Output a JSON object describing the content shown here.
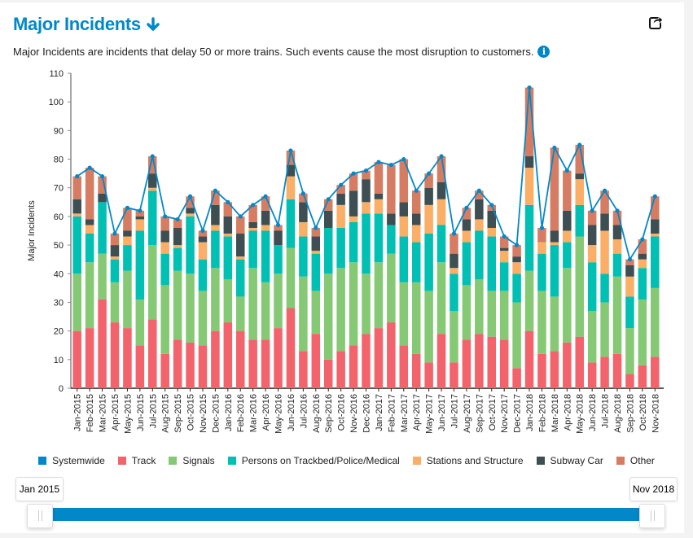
{
  "header": {
    "title": "Major Incidents",
    "description": "Major Incidents are incidents that delay 50 or more trains. Such events cause the most disruption to customers.",
    "title_icon": "arrow-down-icon",
    "share_icon": "share-icon",
    "info_icon": "info-icon",
    "info_glyph": "i"
  },
  "range": {
    "start_label": "Jan 2015",
    "end_label": "Nov 2018",
    "start_fraction": 0,
    "end_fraction": 1
  },
  "chart_data": {
    "type": "bar",
    "stacked": true,
    "title": "Major Incidents",
    "xlabel": "",
    "ylabel": "Major Incidents",
    "ylim": [
      0,
      110
    ],
    "yticks": [
      0,
      10,
      20,
      30,
      40,
      50,
      60,
      70,
      80,
      90,
      100,
      110
    ],
    "grid": false,
    "legend_position": "bottom",
    "categories": [
      "Jan-2015",
      "Feb-2015",
      "Mar-2015",
      "Apr-2015",
      "May-2015",
      "Jun-2015",
      "Jul-2015",
      "Aug-2015",
      "Sep-2015",
      "Oct-2015",
      "Nov-2015",
      "Dec-2015",
      "Jan-2016",
      "Feb-2016",
      "Mar-2016",
      "Apr-2016",
      "May-2016",
      "Jun-2016",
      "Jul-2016",
      "Aug-2016",
      "Sep-2016",
      "Oct-2016",
      "Nov-2016",
      "Dec-2016",
      "Jan-2017",
      "Feb-2017",
      "Mar-2017",
      "Apr-2017",
      "May-2017",
      "Jun-2017",
      "Jul-2017",
      "Aug-2017",
      "Sep-2017",
      "Oct-2017",
      "Nov-2017",
      "Dec-2017",
      "Jan-2018",
      "Feb-2018",
      "Mar-2018",
      "Apr-2018",
      "May-2018",
      "Jun-2018",
      "Jul-2018",
      "Aug-2018",
      "Sep-2018",
      "Oct-2018",
      "Nov-2018"
    ],
    "line_series": {
      "name": "Systemwide",
      "color": "#0288c9",
      "type": "line",
      "values": [
        74,
        77,
        74,
        54,
        63,
        62,
        81,
        60,
        59,
        67,
        55,
        69,
        65,
        60,
        64,
        67,
        57,
        83,
        68,
        56,
        66,
        71,
        75,
        76,
        79,
        78,
        80,
        69,
        75,
        81,
        54,
        63,
        69,
        64,
        53,
        50,
        105,
        56,
        84,
        76,
        85,
        62,
        69,
        62,
        45,
        52,
        67
      ]
    },
    "series": [
      {
        "name": "Track",
        "color": "#f2636b",
        "values": [
          20,
          21,
          31,
          23,
          21,
          15,
          24,
          12,
          17,
          16,
          15,
          20,
          23,
          20,
          17,
          17,
          21,
          28,
          13,
          19,
          10,
          13,
          15,
          19,
          21,
          23,
          15,
          12,
          9,
          19,
          9,
          17,
          19,
          18,
          17,
          7,
          20,
          12,
          13,
          16,
          18,
          9,
          11,
          12,
          5,
          8,
          11
        ]
      },
      {
        "name": "Signals",
        "color": "#85c975",
        "values": [
          20,
          23,
          16,
          14,
          20,
          16,
          26,
          24,
          24,
          24,
          19,
          22,
          15,
          12,
          25,
          20,
          19,
          21,
          26,
          15,
          30,
          29,
          29,
          21,
          23,
          24,
          22,
          25,
          25,
          25,
          18,
          19,
          19,
          16,
          17,
          23,
          21,
          22,
          19,
          26,
          35,
          18,
          19,
          27,
          16,
          23,
          24
        ]
      },
      {
        "name": "Persons on Trackbed/Police/Medical",
        "color": "#00bfb3",
        "values": [
          20,
          10,
          18,
          8,
          9,
          24,
          19,
          11,
          8,
          20,
          11,
          13,
          15,
          13,
          13,
          18,
          10,
          17,
          14,
          13,
          16,
          14,
          14,
          21,
          17,
          10,
          16,
          14,
          20,
          13,
          13,
          15,
          17,
          19,
          10,
          10,
          23,
          13,
          18,
          9,
          11,
          17,
          10,
          8,
          11,
          11,
          18
        ]
      },
      {
        "name": "Stations and Structure",
        "color": "#fbae66",
        "values": [
          1,
          3,
          0,
          1,
          3,
          4,
          1,
          4,
          1,
          1,
          6,
          2,
          1,
          1,
          1,
          2,
          0,
          8,
          5,
          1,
          0,
          8,
          2,
          4,
          5,
          0,
          7,
          6,
          10,
          9,
          2,
          4,
          4,
          3,
          4,
          4,
          13,
          4,
          1,
          4,
          9,
          6,
          15,
          5,
          7,
          3,
          1
        ]
      },
      {
        "name": "Subway Car",
        "color": "#3d4f52",
        "values": [
          5,
          2,
          3,
          4,
          2,
          1,
          5,
          4,
          6,
          2,
          2,
          7,
          6,
          8,
          2,
          5,
          5,
          4,
          7,
          5,
          6,
          4,
          9,
          8,
          2,
          4,
          5,
          4,
          6,
          6,
          5,
          4,
          7,
          6,
          1,
          2,
          4,
          0,
          4,
          7,
          2,
          7,
          6,
          5,
          4,
          2,
          5
        ]
      },
      {
        "name": "Other",
        "color": "#d57c62",
        "values": [
          8,
          18,
          6,
          4,
          8,
          2,
          6,
          5,
          3,
          4,
          2,
          5,
          5,
          6,
          6,
          5,
          2,
          5,
          3,
          3,
          4,
          3,
          6,
          3,
          11,
          17,
          15,
          8,
          5,
          9,
          7,
          4,
          3,
          2,
          4,
          4,
          24,
          5,
          29,
          14,
          10,
          5,
          8,
          5,
          2,
          5,
          8
        ]
      }
    ]
  }
}
